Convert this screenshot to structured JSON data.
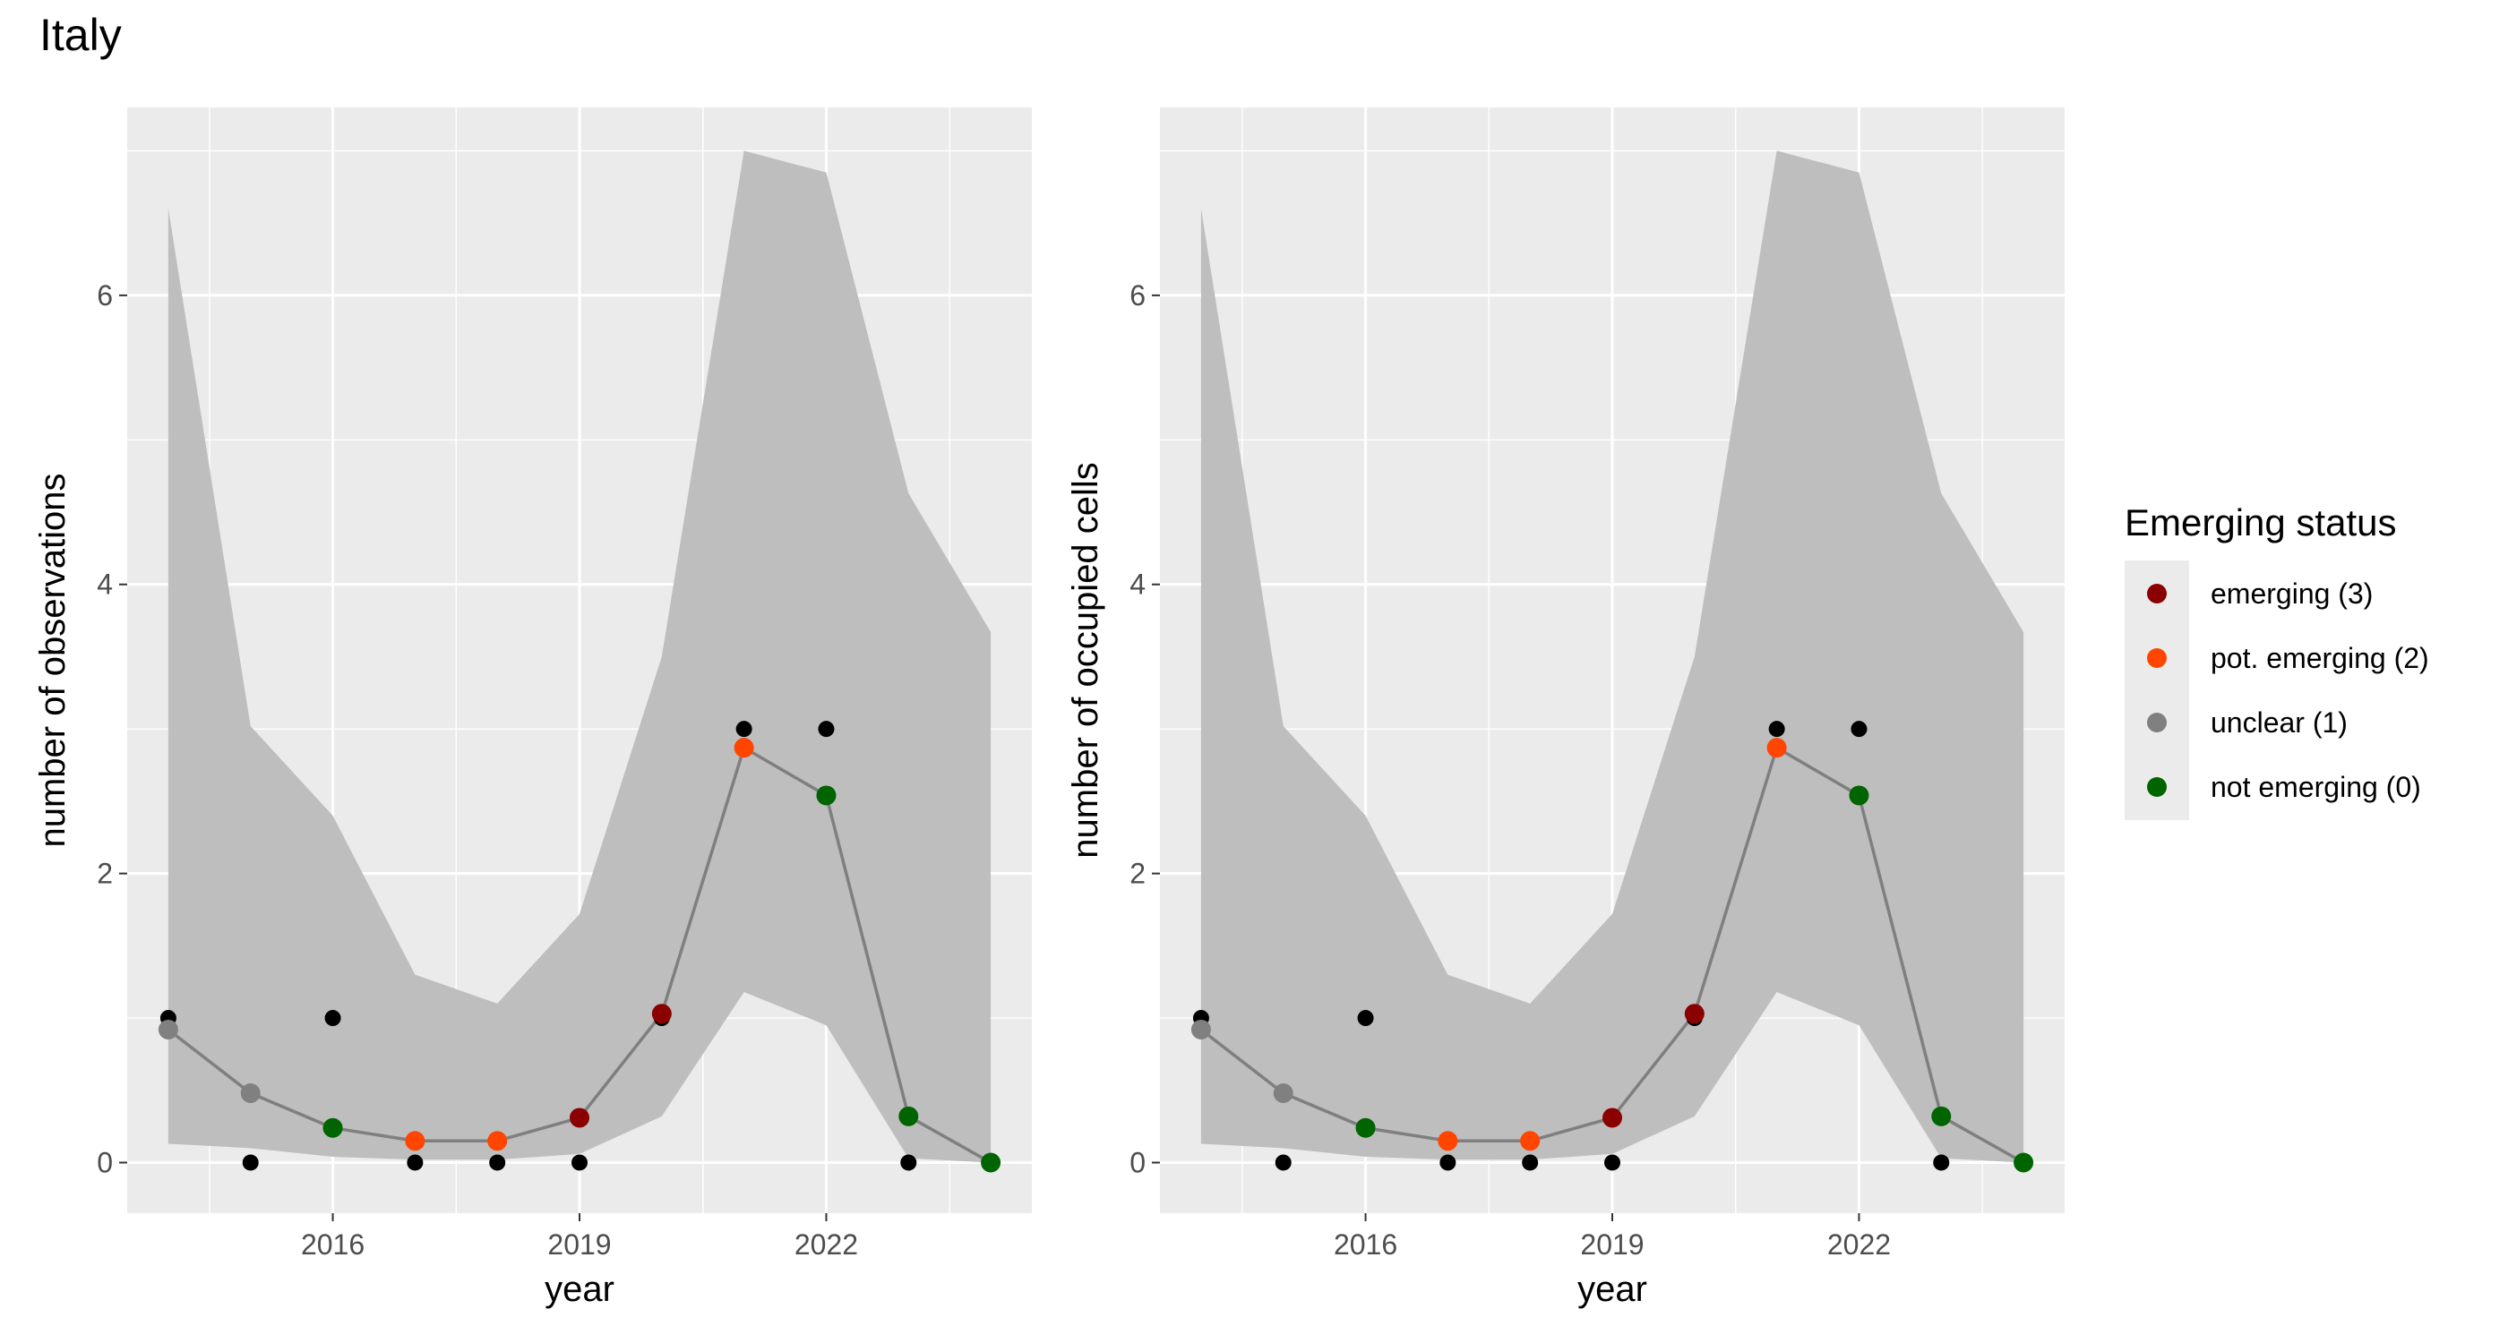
{
  "page": {
    "title": "Italy"
  },
  "chart_data": {
    "type": "line",
    "title": "Italy",
    "panels": [
      {
        "xlabel": "year",
        "ylabel": "number of observations",
        "xlim": [
          2013.5,
          2024.5
        ],
        "ylim": [
          -0.35,
          7.3
        ],
        "x_ticks": [
          2016,
          2019,
          2022
        ],
        "y_ticks": [
          0,
          2,
          4,
          6
        ],
        "x": [
          2014,
          2015,
          2016,
          2017,
          2018,
          2019,
          2020,
          2021,
          2022,
          2023,
          2024
        ],
        "observed": [
          1,
          0,
          1,
          0,
          0,
          0,
          1,
          3,
          3,
          0,
          0
        ],
        "fitted": [
          0.92,
          0.48,
          0.24,
          0.15,
          0.15,
          0.31,
          1.03,
          2.87,
          2.54,
          0.32,
          0.0
        ],
        "ci_upper": [
          6.6,
          3.02,
          2.4,
          1.3,
          1.1,
          1.72,
          3.5,
          7.0,
          6.85,
          4.63,
          3.67
        ],
        "ci_lower": [
          0.13,
          0.1,
          0.04,
          0.02,
          0.02,
          0.06,
          0.32,
          1.18,
          0.95,
          0.03,
          0.0
        ],
        "status": [
          1,
          1,
          0,
          2,
          2,
          3,
          3,
          2,
          0,
          0,
          0
        ]
      },
      {
        "xlabel": "year",
        "ylabel": "number of occupied cells",
        "xlim": [
          2013.5,
          2024.5
        ],
        "ylim": [
          -0.35,
          7.3
        ],
        "x_ticks": [
          2016,
          2019,
          2022
        ],
        "y_ticks": [
          0,
          2,
          4,
          6
        ],
        "x": [
          2014,
          2015,
          2016,
          2017,
          2018,
          2019,
          2020,
          2021,
          2022,
          2023,
          2024
        ],
        "observed": [
          1,
          0,
          1,
          0,
          0,
          0,
          1,
          3,
          3,
          0,
          0
        ],
        "fitted": [
          0.92,
          0.48,
          0.24,
          0.15,
          0.15,
          0.31,
          1.03,
          2.87,
          2.54,
          0.32,
          0.0
        ],
        "ci_upper": [
          6.6,
          3.02,
          2.4,
          1.3,
          1.1,
          1.72,
          3.5,
          7.0,
          6.85,
          4.63,
          3.67
        ],
        "ci_lower": [
          0.13,
          0.1,
          0.04,
          0.02,
          0.02,
          0.06,
          0.32,
          1.18,
          0.95,
          0.03,
          0.0
        ],
        "status": [
          1,
          1,
          0,
          2,
          2,
          3,
          3,
          2,
          0,
          0,
          0
        ]
      }
    ],
    "legend": {
      "title": "Emerging status",
      "placement": "right",
      "items": [
        {
          "label": "emerging (3)",
          "code": 3,
          "color": "#8b0000"
        },
        {
          "label": "pot. emerging (2)",
          "code": 2,
          "color": "#ff4500"
        },
        {
          "label": "unclear (1)",
          "code": 1,
          "color": "#808080"
        },
        {
          "label": "not emerging (0)",
          "code": 0,
          "color": "#006400"
        }
      ]
    },
    "colors": {
      "panel_background": "#ebebeb",
      "grid": "#ffffff",
      "ribbon": "#bebebe",
      "fitted_line": "#7f7f7f",
      "observed_point": "#000000"
    },
    "grid": true
  }
}
